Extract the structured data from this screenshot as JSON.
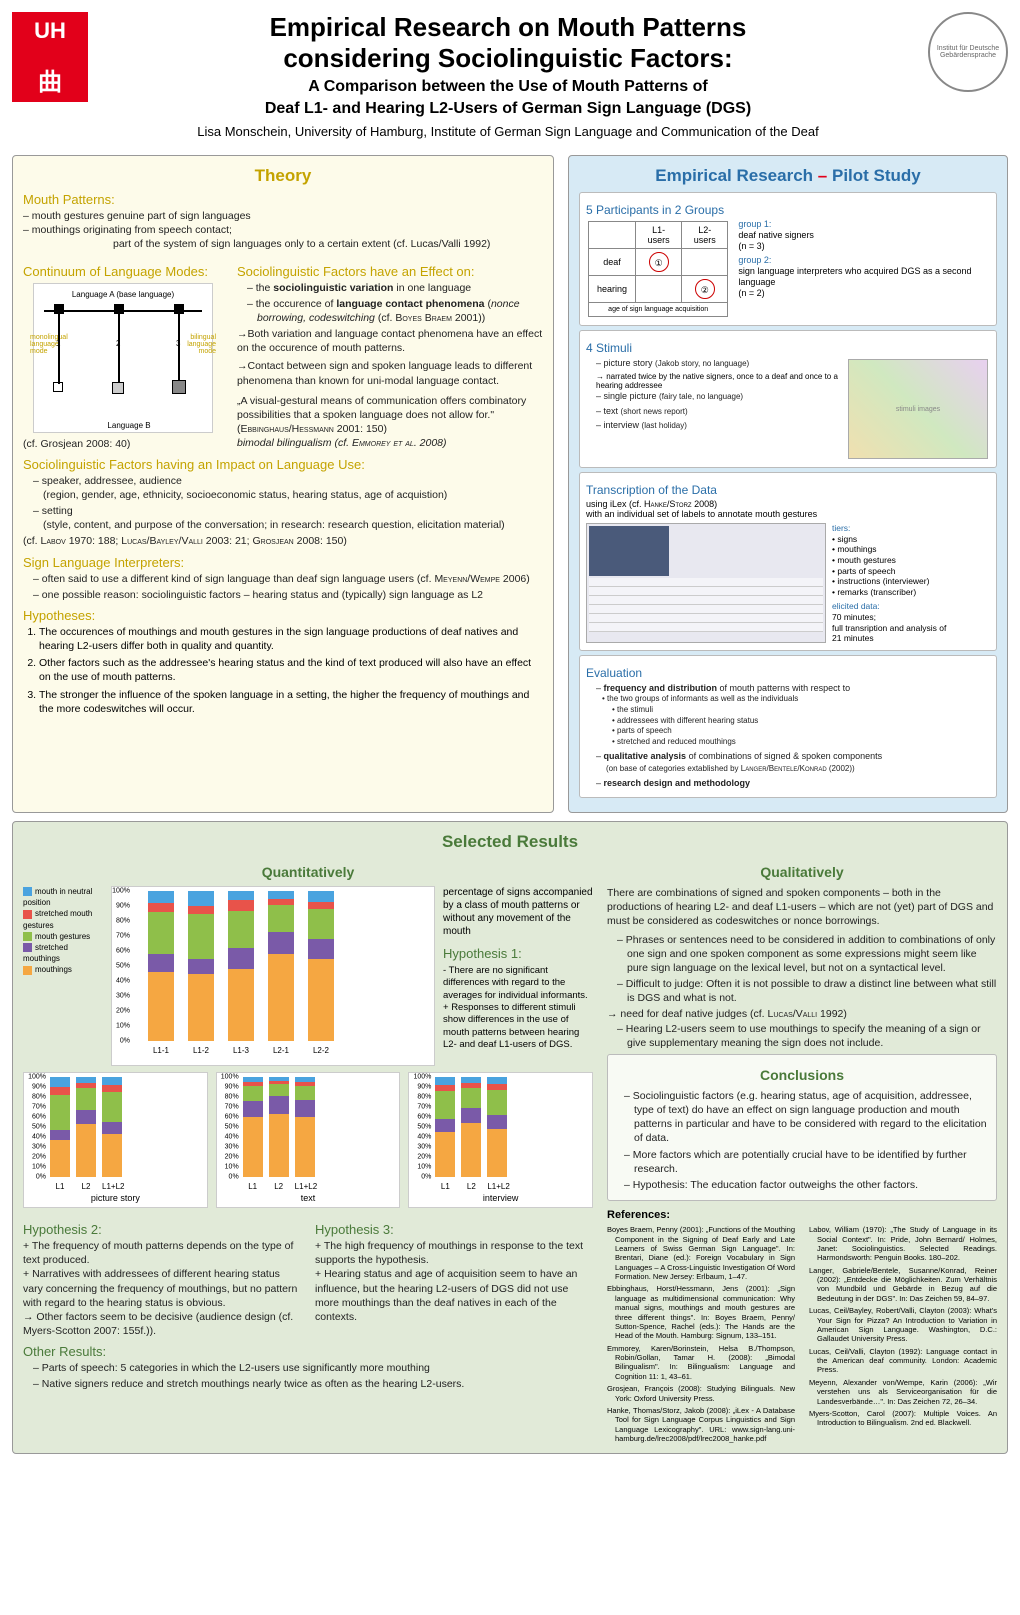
{
  "header": {
    "logo_text": "UH",
    "title_l1": "Empirical Research on Mouth Patterns",
    "title_l2": "considering Sociolinguistic Factors:",
    "subtitle_l1": "A Comparison between the Use of Mouth Patterns of",
    "subtitle_l2": "Deaf L1- and Hearing L2-Users of German Sign Language (DGS)",
    "authors": "Lisa Monschein, University of Hamburg, Institute of German Sign Language and Communication of the Deaf",
    "inst_logo_text": "Institut für Deutsche Gebärdensprache"
  },
  "theory": {
    "title": "Theory",
    "mouth_patterns_head": "Mouth Patterns:",
    "mp_gestures": "– mouth gestures  genuine part of sign languages",
    "mp_mouthings_l1": "– mouthings        originating from speech contact;",
    "mp_mouthings_l2": "part of the system of sign languages only to a certain extent (cf. Lucas/Valli 1992)",
    "continuum_head": "Continuum of Language Modes:",
    "cont_lang_a": "Language A\n(base language)",
    "cont_lang_b": "Language B",
    "cont_mono": "monolingual\nlanguage\nmode",
    "cont_bi": "bilingual\nlanguage\nmode",
    "cont_cite": "(cf. Grosjean 2008: 40)",
    "socio_effect_head": "Sociolinguistic Factors have an Effect on:",
    "socio_effect_1": "the sociolinguistic variation in one language",
    "socio_effect_2": "the occurence of language contact phenomena (nonce borrowing, codeswitching (cf. Boyes Braem 2001))",
    "socio_arrow_1": "→Both variation and language contact phenomena have an effect on the occurence of mouth patterns.",
    "socio_arrow_2": "→Contact between sign and spoken language leads to different phenomena than known for uni-modal language contact.",
    "quote": "„A visual-gestural means of communication offers combinatory possibilities that a spoken language does not allow for.\"",
    "quote_cite": "(Ebbinghaus/Hessmann 2001: 150)",
    "bimodal": "bimodal bilingualism (cf. Emmorey et al. 2008)",
    "impact_head": "Sociolinguistic Factors having an Impact on Language Use:",
    "impact_1": "speaker, addressee, audience",
    "impact_1b": "(region, gender, age, ethnicity, socioeconomic status, hearing status, age of acquistion)",
    "impact_2": "setting",
    "impact_2b": "(style, content, and purpose of the conversation; in research: research question, elicitation material)",
    "impact_cite": "(cf. Labov 1970: 188; Lucas/Bayley/Valli 2003: 21; Grosjean 2008: 150)",
    "interp_head": "Sign Language Interpreters:",
    "interp_1": "often said to use a different kind of sign language than deaf sign language users (cf. Meyenn/Wempe 2006)",
    "interp_2": "one possible reason: sociolinguistic factors – hearing status and (typically) sign language as L2",
    "hyp_head": "Hypotheses:",
    "hyp_1": "The occurences of mouthings and mouth gestures in the sign language productions of deaf natives and hearing L2-users differ both in quality and quantity.",
    "hyp_2": "Other factors such as the addressee's hearing status and the kind of text produced will also have an effect on the use of mouth patterns.",
    "hyp_3": "The stronger the influence of the spoken language in a setting, the higher the frequency of mouthings and the more codeswitches will occur."
  },
  "pilot": {
    "title": "Empirical Research – Pilot Study",
    "part_head": "5 Participants in 2 Groups",
    "tbl_l1": "L1-users",
    "tbl_l2": "L2-users",
    "tbl_deaf": "deaf",
    "tbl_hear": "hearing",
    "tbl_caption": "age of sign language acquisition",
    "grp1": "group 1:",
    "grp1_d": "deaf native signers\n(n = 3)",
    "grp2": "group 2:",
    "grp2_d": "sign language interpreters who acquired DGS as a second language\n(n = 2)",
    "stim_head": "4 Stimuli",
    "stim_1": "picture story (Jakob story, no language)",
    "stim_1b": "→ narrated twice by the native signers, once to a deaf and once to a hearing addressee",
    "stim_2": "single picture (fairy tale, no language)",
    "stim_3": "text (short news report)",
    "stim_4": "interview (last holiday)",
    "trans_head": "Transcription of the Data",
    "trans_sub": "using iLex (cf. Hanke/Storz 2008)",
    "trans_desc": "with an individual set of labels to annotate mouth gestures",
    "tiers_head": "tiers:",
    "tiers": [
      "signs",
      "mouthings",
      "mouth gestures",
      "parts of speech",
      "instructions (interviewer)",
      "remarks (transcriber)"
    ],
    "elicit_head": "elicited data:",
    "elicit": "70 minutes;\nfull transription and analysis of\n21 minutes",
    "eval_head": "Evaluation",
    "eval_1": "frequency and distribution of mouth patterns with respect to",
    "eval_1_sub": [
      "the two groups of informants as well as the individuals",
      "the stimuli",
      "addressees with different hearing status",
      "parts of speech",
      "stretched and reduced mouthings"
    ],
    "eval_2": "qualitative analysis of combinations of signed & spoken components",
    "eval_2_sub": "(on base of categories extablished by Langer/Bentele/Konrad (2002))",
    "eval_3": "research design and methodology"
  },
  "results": {
    "title": "Selected Results",
    "quant_title": "Quantitatively",
    "qual_title": "Qualitatively",
    "concl_title": "Conclusions",
    "legend": {
      "neutral": "mouth in neutral position",
      "stretched_g": "stretched mouth gestures",
      "gestures": "mouth gestures",
      "stretched_m": "stretched mouthings",
      "mouthings": "mouthings"
    },
    "colors": {
      "neutral": "#4aa3df",
      "stretched_g": "#e8534a",
      "gestures": "#8fbf4a",
      "stretched_m": "#7a5aa8",
      "mouthings": "#f5a742"
    },
    "main_chart": {
      "x": [
        "L1-1",
        "L1-2",
        "L1-3",
        "L2-1",
        "L2-2"
      ],
      "y_ticks": [
        "0%",
        "10%",
        "20%",
        "30%",
        "40%",
        "50%",
        "60%",
        "70%",
        "80%",
        "90%",
        "100%"
      ],
      "data": [
        {
          "neutral": 8,
          "stretched_g": 6,
          "gestures": 28,
          "stretched_m": 12,
          "mouthings": 46
        },
        {
          "neutral": 10,
          "stretched_g": 5,
          "gestures": 30,
          "stretched_m": 10,
          "mouthings": 45
        },
        {
          "neutral": 6,
          "stretched_g": 7,
          "gestures": 25,
          "stretched_m": 14,
          "mouthings": 48
        },
        {
          "neutral": 5,
          "stretched_g": 4,
          "gestures": 18,
          "stretched_m": 15,
          "mouthings": 58
        },
        {
          "neutral": 7,
          "stretched_g": 5,
          "gestures": 20,
          "stretched_m": 13,
          "mouthings": 55
        }
      ]
    },
    "mini_charts": [
      {
        "title": "picture story",
        "x": [
          "L1",
          "L2",
          "L1+L2"
        ],
        "data": [
          {
            "neutral": 10,
            "stretched_g": 8,
            "gestures": 35,
            "stretched_m": 10,
            "mouthings": 37
          },
          {
            "neutral": 6,
            "stretched_g": 5,
            "gestures": 22,
            "stretched_m": 14,
            "mouthings": 53
          },
          {
            "neutral": 8,
            "stretched_g": 7,
            "gestures": 30,
            "stretched_m": 12,
            "mouthings": 43
          }
        ]
      },
      {
        "title": "text",
        "x": [
          "L1",
          "L2",
          "L1+L2"
        ],
        "data": [
          {
            "neutral": 5,
            "stretched_g": 4,
            "gestures": 15,
            "stretched_m": 16,
            "mouthings": 60
          },
          {
            "neutral": 4,
            "stretched_g": 3,
            "gestures": 12,
            "stretched_m": 18,
            "mouthings": 63
          },
          {
            "neutral": 5,
            "stretched_g": 4,
            "gestures": 14,
            "stretched_m": 17,
            "mouthings": 60
          }
        ]
      },
      {
        "title": "interview",
        "x": [
          "L1",
          "L2",
          "L1+L2"
        ],
        "data": [
          {
            "neutral": 8,
            "stretched_g": 6,
            "gestures": 28,
            "stretched_m": 13,
            "mouthings": 45
          },
          {
            "neutral": 6,
            "stretched_g": 5,
            "gestures": 20,
            "stretched_m": 15,
            "mouthings": 54
          },
          {
            "neutral": 7,
            "stretched_g": 6,
            "gestures": 25,
            "stretched_m": 14,
            "mouthings": 48
          }
        ]
      }
    ],
    "quant_desc": "percentage of signs accompanied by a class of mouth patterns or without any movement of the mouth",
    "h1_head": "Hypothesis 1:",
    "h1_neg": "There are no significant differences with regard to the averages for individual informants.",
    "h1_pos": "Responses to different stimuli show differences in the use of mouth patterns between hearing L2- and deaf L1-users of DGS.",
    "h2_head": "Hypothesis 2:",
    "h2_1": "The frequency of mouth patterns depends on the type of text produced.",
    "h2_2": "Narratives with addressees of different hearing status vary concerning the frequency of mouthings, but no pattern with regard to the hearing status is obvious.",
    "h2_3": "→ Other factors seem to be decisive (audience design (cf. Myers-Scotton 2007: 155f.)).",
    "h3_head": "Hypothesis 3:",
    "h3_1": "The high frequency of mouthings in response to the text supports the hypothesis.",
    "h3_2": "Hearing status and age of acquisition seem to have an influence, but the hearing L2-users of DGS did not use more mouthings than the deaf natives in each of the contexts.",
    "other_head": "Other Results:",
    "other_1": "Parts of speech: 5 categories in which the L2-users use significantly more mouthing",
    "other_2": "Native signers reduce and stretch mouthings nearly twice as often as the hearing L2-users.",
    "qual_intro": "There are combinations of signed and spoken components – both in the productions of hearing L2- and deaf L1-users – which are not (yet) part of DGS and must be considered as codeswitches or nonce borrowings.",
    "qual_1": "Phrases or sentences need to be considered in addition to combinations of only one sign and one spoken component as some expressions might seem like pure sign language on the lexical level, but not on a syntactical level.",
    "qual_2": "Difficult to judge: Often it is not possible to draw a distinct line between what still is DGS and what is not.",
    "qual_3": "→ need for deaf native judges (cf. Lucas/Valli 1992)",
    "qual_4": "Hearing L2-users seem to use mouthings to specify the meaning of a sign or give supplementary meaning the sign does not include.",
    "concl_1": "Sociolinguistic factors (e.g. hearing status, age of acquisition, addressee, type of text) do have an effect on sign language production and mouth patterns in particular and have to be considered with regard to the elicitation of data.",
    "concl_2": "More factors which are potentially crucial have to be identified by further research.",
    "concl_3": "Hypothesis: The education factor outweighs the other factors."
  },
  "refs": {
    "head": "References:",
    "items": [
      "Boyes Braem, Penny (2001): „Functions of the Mouthing Component in the Signing of Deaf Early and Late Learners of Swiss German Sign Language\". In: Brentari, Diane (ed.): Foreign Vocabulary in Sign Languages – A Cross-Linguistic Investigation Of Word Formation. New Jersey: Erlbaum, 1–47.",
      "Ebbinghaus, Horst/Hessmann, Jens (2001): „Sign language as multidimensional communication: Why manual signs, mouthings and mouth gestures are three different things\". In: Boyes Braem, Penny/ Sutton-Spence, Rachel (eds.): The Hands are the Head of the Mouth. Hamburg: Signum, 133–151.",
      "Emmorey, Karen/Borinstein, Helsa B./Thompson, Robin/Gollan, Tamar H. (2008): „Bimodal Bilingualism\". In: Bilingualism: Language and Cognition 11: 1, 43–61.",
      "Grosjean, François (2008): Studying Bilinguals. New York: Oxford University Press.",
      "Hanke, Thomas/Storz, Jakob (2008): „iLex - A Database Tool for Sign Language Corpus Linguistics and Sign Language Lexicography\". URL: www.sign-lang.uni-hamburg.de/lrec2008/pdf/lrec2008_hanke.pdf",
      "Labov, William (1970): „The Study of Language in its Social Context\". In: Pride, John Bernard/ Holmes, Janet: Sociolinguistics. Selected Readings. Harmondsworth: Penguin Books. 180–202.",
      "Langer, Gabriele/Bentele, Susanne/Konrad, Reiner (2002): „Entdecke die Möglichkeiten. Zum Verhältnis von Mundbild und Gebärde in Bezug auf die Bedeutung in der DGS\". In: Das Zeichen 59, 84–97.",
      "Lucas, Ceil/Bayley, Robert/Valli, Clayton (2003): What's Your Sign for Pizza? An Introduction to Variation in American Sign Language. Washington, D.C.: Gallaudet University Press.",
      "Lucas, Ceil/Valli, Clayton (1992): Language contact in the American deaf community. London: Academic Press.",
      "Meyenn, Alexander von/Wempe, Karin (2006): „Wir verstehen uns als Serviceorganisation für die Landesverbände…\". In: Das Zeichen 72, 26–34.",
      "Myers-Scotton, Carol (2007): Multiple Voices. An Introduction to Bilingualism. 2nd ed. Blackwell."
    ]
  }
}
